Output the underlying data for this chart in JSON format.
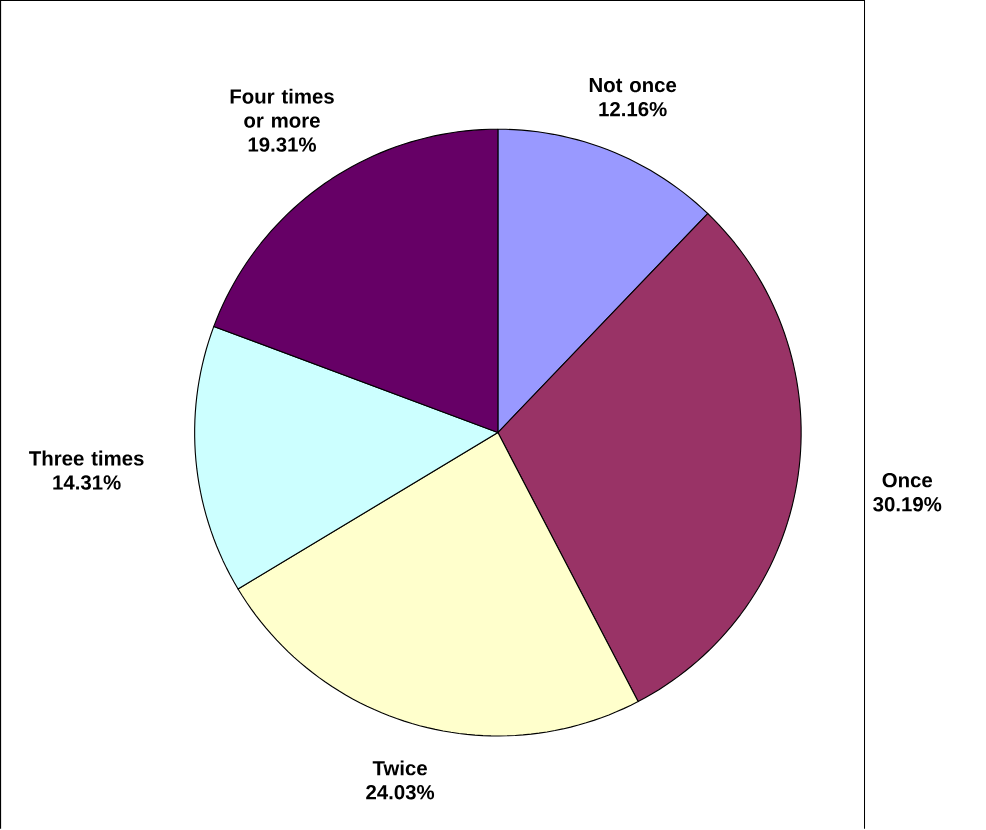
{
  "chart_data": {
    "type": "pie",
    "categories": [
      "Not once",
      "Once",
      "Twice",
      "Three times",
      "Four times or more"
    ],
    "values": [
      12.16,
      30.19,
      24.03,
      14.31,
      19.31
    ],
    "value_labels": [
      "12.16%",
      "30.19%",
      "24.03%",
      "14.31%",
      "19.31%"
    ],
    "colors": [
      "#9999ff",
      "#993366",
      "#ffffcc",
      "#ccffff",
      "#660066"
    ]
  }
}
